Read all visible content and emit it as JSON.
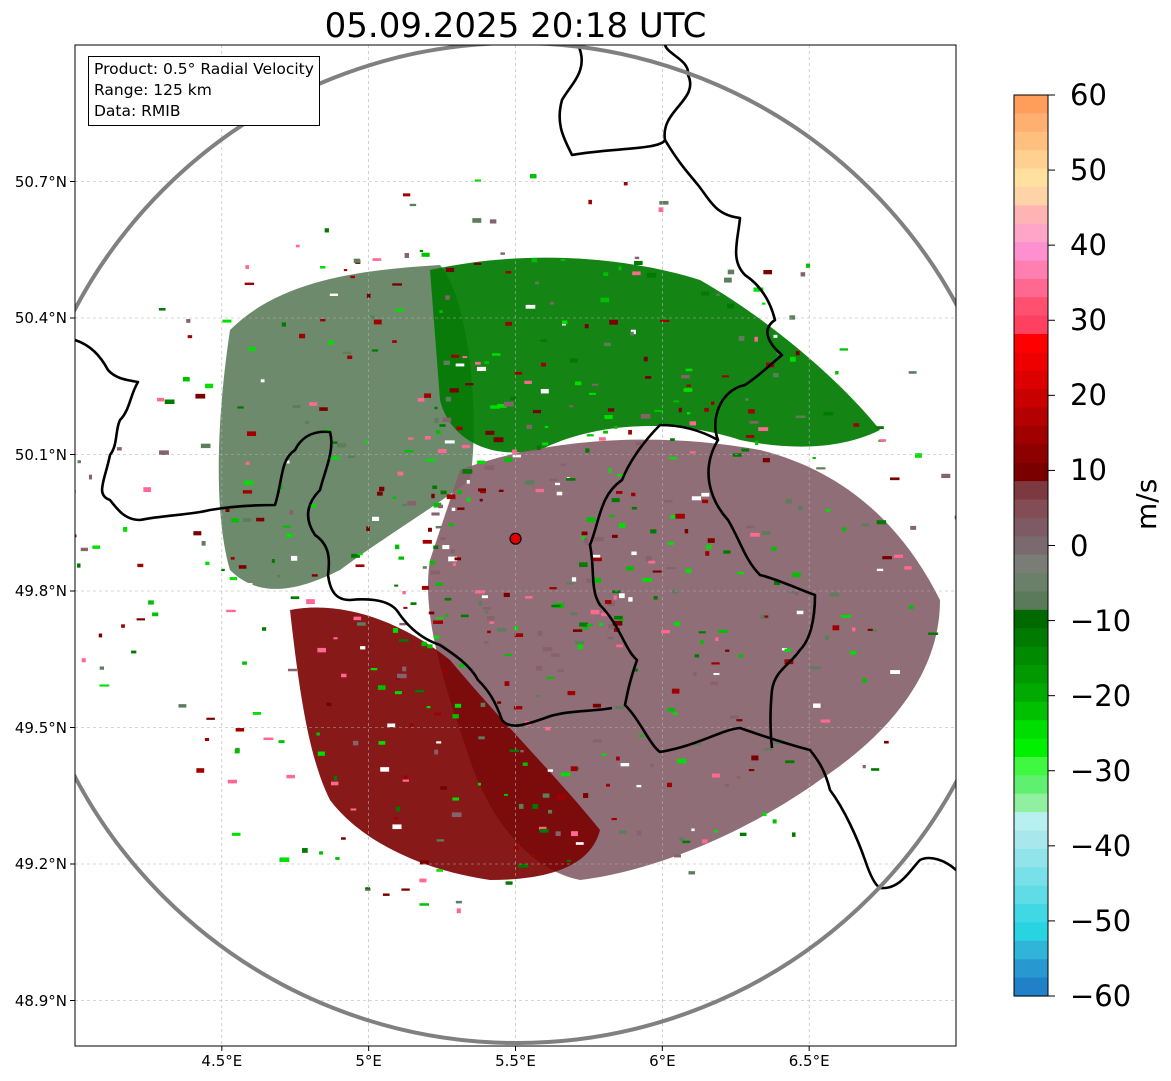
{
  "title": "05.09.2025 20:18 UTC",
  "info_box": {
    "product": "Product: 0.5° Radial Velocity",
    "range": "Range: 125 km",
    "data": "Data: RMIB"
  },
  "map": {
    "lon_range": [
      4.0,
      7.0
    ],
    "lat_range": [
      48.8,
      51.0
    ],
    "lat_ticks": [
      "50.7°N",
      "50.4°N",
      "50.1°N",
      "49.8°N",
      "49.5°N",
      "49.2°N",
      "48.9°N"
    ],
    "lat_values": [
      50.7,
      50.4,
      50.1,
      49.8,
      49.5,
      49.2,
      48.9
    ],
    "lon_ticks": [
      "4.5°E",
      "5°E",
      "5.5°E",
      "6°E",
      "6.5°E"
    ],
    "lon_values": [
      4.5,
      5.0,
      5.5,
      6.0,
      6.5
    ],
    "radar_site": {
      "lon": 5.5,
      "lat": 49.915,
      "color": "#e00000"
    },
    "range_ring_km": 125,
    "gridlines": true
  },
  "colorbar": {
    "unit": "m/s",
    "min": -60,
    "max": 60,
    "tick_labels": [
      "60",
      "50",
      "40",
      "30",
      "20",
      "10",
      "0",
      "−10",
      "−20",
      "−30",
      "−40",
      "−50",
      "−60"
    ],
    "tick_values": [
      60,
      50,
      40,
      30,
      20,
      10,
      0,
      -10,
      -20,
      -30,
      -40,
      -50,
      -60
    ],
    "colors_top_to_bottom": [
      "#ff9e5a",
      "#ffb070",
      "#ffc07f",
      "#ffd08f",
      "#ffe09e",
      "#ffd3a8",
      "#ffb4b4",
      "#ffa6c8",
      "#ff90d0",
      "#ff80b0",
      "#ff6890",
      "#ff5070",
      "#ff4060",
      "#ff0000",
      "#ee0000",
      "#dd0000",
      "#c80000",
      "#b40000",
      "#a00000",
      "#8c0000",
      "#7a0000",
      "#7c3a40",
      "#844c54",
      "#7e5a64",
      "#7a6a70",
      "#7a7c76",
      "#6a8068",
      "#5a7a5a",
      "#006a00",
      "#007a00",
      "#008a00",
      "#009a00",
      "#00aa00",
      "#00c000",
      "#00dd00",
      "#00f000",
      "#40f840",
      "#60f070",
      "#90f0a0",
      "#b8f0f0",
      "#a8e8ec",
      "#90e4ea",
      "#78e0e8",
      "#60dce6",
      "#40d8e4",
      "#28d4e2",
      "#30b4d8",
      "#2898d0",
      "#2080c8"
    ]
  }
}
